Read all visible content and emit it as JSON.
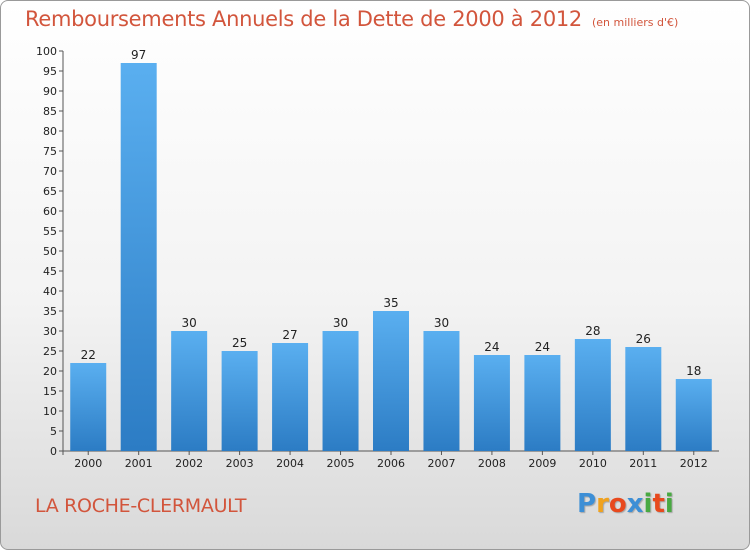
{
  "title": "Remboursements Annuels de la Dette de 2000 à 2012",
  "unit": "(en milliers d'€)",
  "commune": "LA ROCHE-CLERMAULT",
  "logo": {
    "letters": [
      "P",
      "r",
      "o",
      "x",
      "i",
      "t",
      "i"
    ],
    "colors": [
      "#3d8fd6",
      "#f0a21e",
      "#e8491d",
      "#3d8fd6",
      "#49a942",
      "#e8491d",
      "#49a942"
    ]
  },
  "colors": {
    "title": "#d2553c",
    "bar_top": "#5aaff0",
    "bar_bottom": "#2c7cc4"
  },
  "chart_data": {
    "type": "bar",
    "categories": [
      "2000",
      "2001",
      "2002",
      "2003",
      "2004",
      "2005",
      "2006",
      "2007",
      "2008",
      "2009",
      "2010",
      "2011",
      "2012"
    ],
    "values": [
      22,
      97,
      30,
      25,
      27,
      30,
      35,
      30,
      24,
      24,
      28,
      26,
      18
    ],
    "data_labels": [
      "22",
      "97",
      "30",
      "25",
      "27",
      "30",
      "35",
      "30",
      "24",
      "24",
      "28",
      "26",
      "18"
    ],
    "ylim": [
      0,
      100
    ],
    "ytick_labels": [
      "0",
      "5",
      "10",
      "15",
      "20",
      "25",
      "30",
      "35",
      "40",
      "45",
      "50",
      "55",
      "60",
      "65",
      "70",
      "75",
      "80",
      "85",
      "90",
      "95",
      "100"
    ],
    "grid": false,
    "legend": "none"
  }
}
